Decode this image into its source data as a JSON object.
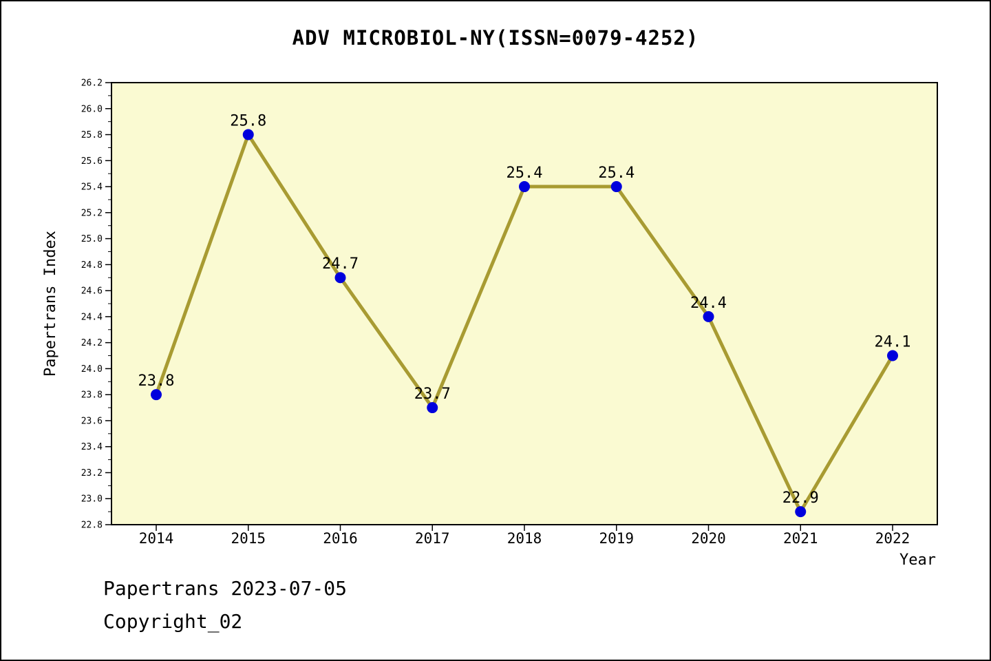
{
  "chart_data": {
    "type": "line",
    "title": "ADV MICROBIOL-NY(ISSN=0079-4252)",
    "xlabel": "Year",
    "ylabel": "Papertrans Index",
    "categories": [
      "2014",
      "2015",
      "2016",
      "2017",
      "2018",
      "2019",
      "2020",
      "2021",
      "2022"
    ],
    "values": [
      23.8,
      25.8,
      24.7,
      23.7,
      25.4,
      25.4,
      24.4,
      22.9,
      24.1
    ],
    "ylim": [
      22.8,
      26.2
    ],
    "ytick_step": 0.2,
    "grid": false,
    "legend": "none",
    "colors": {
      "plot_bg": "#FAFAD2",
      "line": "#A89B32",
      "marker": "#0000DD",
      "frame": "#000000",
      "text": "#000000"
    }
  },
  "footer": {
    "line1": "Papertrans 2023-07-05",
    "line2": "Copyright_02"
  }
}
